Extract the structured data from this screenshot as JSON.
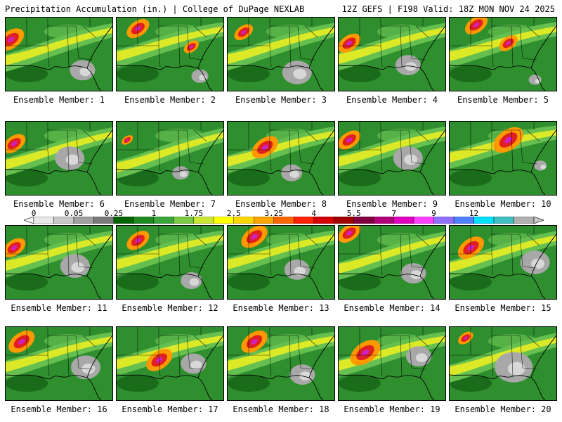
{
  "header": {
    "title": "Precipitation Accumulation (in.) | College of DuPage NEXLAB",
    "run_info": "12Z GEFS | F198 Valid: 18Z MON NOV 24 2025"
  },
  "panels": [
    {
      "label": "Ensemble Member: 1",
      "heavy": [
        [
          0.05,
          0.3,
          0.35
        ]
      ],
      "gray": [
        [
          0.72,
          0.72,
          0.3
        ]
      ],
      "band": 0.2
    },
    {
      "label": "Ensemble Member: 2",
      "heavy": [
        [
          0.2,
          0.15,
          0.3
        ],
        [
          0.7,
          0.4,
          0.2
        ]
      ],
      "gray": [
        [
          0.78,
          0.8,
          0.2
        ]
      ],
      "band": 0.35
    },
    {
      "label": "Ensemble Member: 3",
      "heavy": [
        [
          0.15,
          0.2,
          0.25
        ]
      ],
      "gray": [
        [
          0.65,
          0.75,
          0.35
        ]
      ],
      "band": 0.25
    },
    {
      "label": "Ensemble Member: 4",
      "heavy": [
        [
          0.1,
          0.35,
          0.3
        ]
      ],
      "gray": [
        [
          0.65,
          0.65,
          0.3
        ]
      ],
      "band": 0.25
    },
    {
      "label": "Ensemble Member: 5",
      "heavy": [
        [
          0.25,
          0.1,
          0.3
        ],
        [
          0.55,
          0.35,
          0.25
        ]
      ],
      "gray": [
        [
          0.8,
          0.85,
          0.15
        ]
      ],
      "band": 0.35
    },
    {
      "label": "Ensemble Member: 6",
      "heavy": [
        [
          0.08,
          0.3,
          0.3
        ]
      ],
      "gray": [
        [
          0.6,
          0.5,
          0.35
        ]
      ],
      "band": 0.2
    },
    {
      "label": "Ensemble Member: 7",
      "heavy": [
        [
          0.1,
          0.25,
          0.15
        ]
      ],
      "gray": [
        [
          0.6,
          0.7,
          0.2
        ]
      ],
      "band": 0.1
    },
    {
      "label": "Ensemble Member: 8",
      "heavy": [
        [
          0.35,
          0.35,
          0.35
        ]
      ],
      "gray": [
        [
          0.6,
          0.7,
          0.25
        ]
      ],
      "band": 0.3
    },
    {
      "label": "Ensemble Member: 9",
      "heavy": [
        [
          0.1,
          0.25,
          0.3
        ]
      ],
      "gray": [
        [
          0.65,
          0.5,
          0.35
        ]
      ],
      "band": 0.3
    },
    {
      "label": "Ensemble Member: 10",
      "heavy": [
        [
          0.55,
          0.25,
          0.4
        ]
      ],
      "gray": [
        [
          0.85,
          0.6,
          0.15
        ]
      ],
      "band": 0.45
    },
    {
      "label": "Ensemble Member: 11",
      "heavy": [
        [
          0.08,
          0.3,
          0.3
        ]
      ],
      "gray": [
        [
          0.65,
          0.55,
          0.35
        ]
      ],
      "band": 0.3
    },
    {
      "label": "Ensemble Member: 12",
      "heavy": [
        [
          0.2,
          0.2,
          0.3
        ]
      ],
      "gray": [
        [
          0.7,
          0.75,
          0.25
        ]
      ],
      "band": 0.35
    },
    {
      "label": "Ensemble Member: 13",
      "heavy": [
        [
          0.25,
          0.15,
          0.35
        ]
      ],
      "gray": [
        [
          0.65,
          0.6,
          0.3
        ]
      ],
      "band": 0.35
    },
    {
      "label": "Ensemble Member: 14",
      "heavy": [
        [
          0.1,
          0.1,
          0.3
        ]
      ],
      "gray": [
        [
          0.7,
          0.65,
          0.3
        ]
      ],
      "band": 0.2
    },
    {
      "label": "Ensemble Member: 15",
      "heavy": [
        [
          0.2,
          0.3,
          0.35
        ]
      ],
      "gray": [
        [
          0.8,
          0.5,
          0.35
        ]
      ],
      "band": 0.25
    },
    {
      "label": "Ensemble Member: 16",
      "heavy": [
        [
          0.15,
          0.2,
          0.35
        ]
      ],
      "gray": [
        [
          0.75,
          0.55,
          0.35
        ]
      ],
      "band": 0.3
    },
    {
      "label": "Ensemble Member: 17",
      "heavy": [
        [
          0.4,
          0.45,
          0.35
        ]
      ],
      "gray": [
        [
          0.72,
          0.5,
          0.3
        ]
      ],
      "band": 0.4
    },
    {
      "label": "Ensemble Member: 18",
      "heavy": [
        [
          0.25,
          0.2,
          0.35
        ]
      ],
      "gray": [
        [
          0.7,
          0.65,
          0.3
        ]
      ],
      "band": 0.35
    },
    {
      "label": "Ensemble Member: 19",
      "heavy": [
        [
          0.25,
          0.35,
          0.4
        ]
      ],
      "gray": [
        [
          0.75,
          0.4,
          0.3
        ]
      ],
      "band": 0.35
    },
    {
      "label": "Ensemble Member: 20",
      "heavy": [
        [
          0.15,
          0.15,
          0.2
        ]
      ],
      "gray": [
        [
          0.6,
          0.55,
          0.45
        ]
      ],
      "band": 0.15
    }
  ],
  "colorbar": {
    "labels": [
      "0",
      "0.05",
      "0.25",
      "1",
      "1.75",
      "2.5",
      "3.25",
      "4",
      "5.5",
      "7",
      "9",
      "12"
    ],
    "label_index": [
      0,
      2,
      4,
      6,
      8,
      10,
      12,
      14,
      16,
      18,
      20,
      22
    ],
    "colors": [
      "#e8e8e8",
      "#c8c8c8",
      "#a0a0a0",
      "#7a7a7a",
      "#006400",
      "#1f8a1f",
      "#3aa63a",
      "#7ac943",
      "#c8e632",
      "#ffff00",
      "#ffd700",
      "#ffa500",
      "#ff6600",
      "#ff2200",
      "#d40000",
      "#a00000",
      "#800040",
      "#b0007a",
      "#e000c0",
      "#ff40ff",
      "#9070ff",
      "#5080ff",
      "#00e0ff",
      "#40c0c0",
      "#b0b0b0"
    ]
  },
  "colors": {
    "precip_green": "#2f8f2f",
    "precip_dark_green": "#1a6b1a",
    "precip_light_green": "#66c050",
    "precip_yellow": "#f0f020",
    "precip_orange": "#ff9900",
    "precip_red": "#e02020",
    "precip_magenta": "#d020c0",
    "precip_gray": "#a8a8a8",
    "precip_light_gray": "#d8d8d8"
  }
}
